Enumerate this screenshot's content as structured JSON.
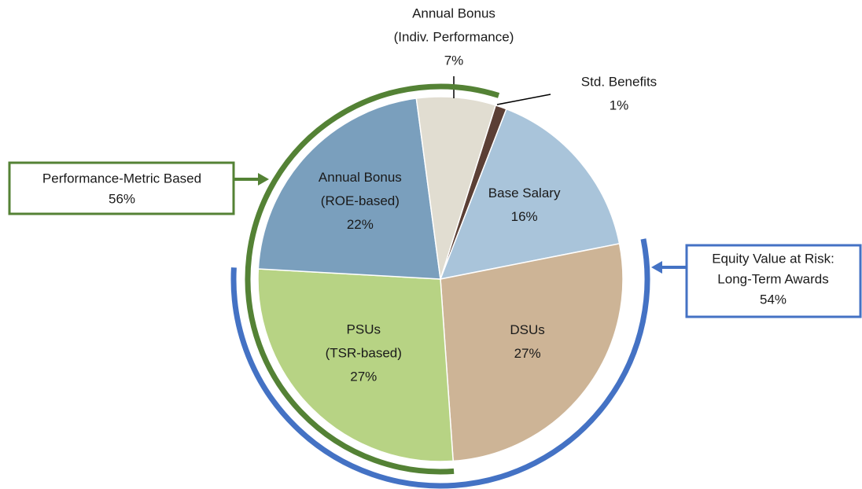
{
  "chart_data": {
    "type": "pie",
    "categories": [
      [
        "Std. Benefits"
      ],
      [
        "Base Salary"
      ],
      [
        "DSUs"
      ],
      [
        "PSUs",
        "(TSR-based)"
      ],
      [
        "Annual Bonus",
        "(ROE-based)"
      ],
      [
        "Annual Bonus",
        "(Indiv. Performance)"
      ]
    ],
    "values": [
      1,
      16,
      27,
      27,
      22,
      7
    ],
    "value_labels": [
      "1%",
      "16%",
      "27%",
      "27%",
      "22%",
      "7%"
    ],
    "colors": [
      "#5b3f35",
      "#a9c4da",
      "#cdb496",
      "#b7d384",
      "#7a9fbd",
      "#e1ddd1"
    ],
    "start_angle": 17.6,
    "annotations": [
      {
        "text": [
          "Performance-Metric Based"
        ],
        "value": 56,
        "label": "56%",
        "color": "#548235"
      },
      {
        "text": [
          "Equity Value at Risk:",
          "Long-Term Awards"
        ],
        "value": 54,
        "label": "54%",
        "color": "#4472c4"
      }
    ]
  }
}
